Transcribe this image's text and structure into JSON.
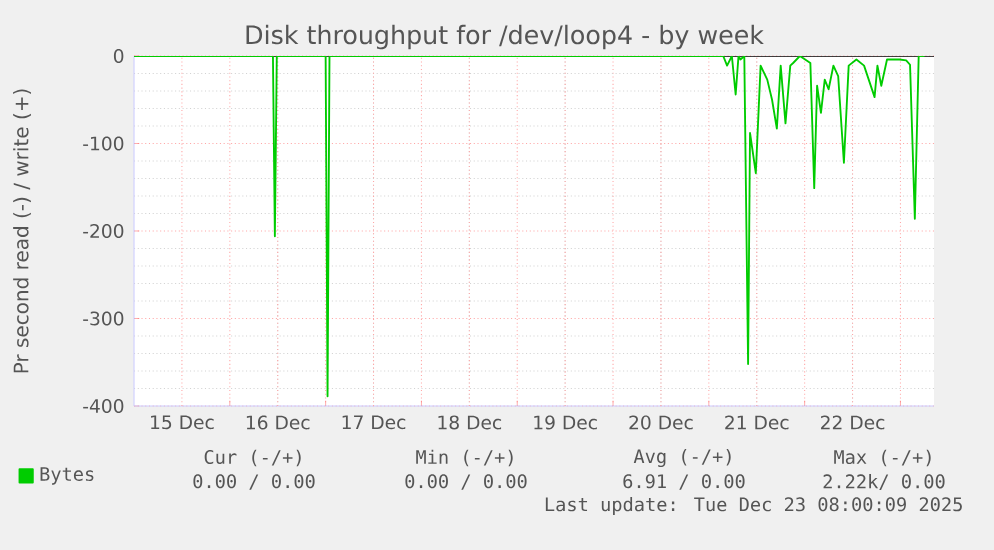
{
  "chart_data": {
    "type": "line",
    "title": "Disk throughput for /dev/loop4 - by week",
    "ylabel": "Pr second read (-) / write (+)",
    "xlim": [
      "2025-12-15T00:00",
      "2025-12-23T08:24"
    ],
    "xticks": [
      {
        "value": "2025-12-15T12:00",
        "label": "15 Dec"
      },
      {
        "value": "2025-12-16T00:00",
        "label": null
      },
      {
        "value": "2025-12-16T12:00",
        "label": "16 Dec"
      },
      {
        "value": "2025-12-17T00:00",
        "label": null
      },
      {
        "value": "2025-12-17T12:00",
        "label": "17 Dec"
      },
      {
        "value": "2025-12-18T00:00",
        "label": null
      },
      {
        "value": "2025-12-18T12:00",
        "label": "18 Dec"
      },
      {
        "value": "2025-12-19T00:00",
        "label": null
      },
      {
        "value": "2025-12-19T12:00",
        "label": "19 Dec"
      },
      {
        "value": "2025-12-20T00:00",
        "label": null
      },
      {
        "value": "2025-12-20T12:00",
        "label": "20 Dec"
      },
      {
        "value": "2025-12-21T00:00",
        "label": null
      },
      {
        "value": "2025-12-21T12:00",
        "label": "21 Dec"
      },
      {
        "value": "2025-12-22T00:00",
        "label": null
      },
      {
        "value": "2025-12-22T12:00",
        "label": "22 Dec"
      },
      {
        "value": "2025-12-23T00:00",
        "label": null
      }
    ],
    "ylim": [
      -400,
      0
    ],
    "yticks": [
      -400,
      -300,
      -200,
      -100,
      0
    ],
    "grid": true,
    "legend": "bottom left",
    "series": [
      {
        "name": "Bytes",
        "color": "#00cc00",
        "x": [
          "2025-12-15T00:00",
          "2025-12-16T10:48",
          "2025-12-16T11:17",
          "2025-12-16T11:46",
          "2025-12-17T00:00",
          "2025-12-17T00:29",
          "2025-12-17T00:58",
          "2025-12-21T03:36",
          "2025-12-21T04:34",
          "2025-12-21T05:46",
          "2025-12-21T06:43",
          "2025-12-21T07:26",
          "2025-12-21T07:55",
          "2025-12-21T08:53",
          "2025-12-21T09:50",
          "2025-12-21T10:19",
          "2025-12-21T11:46",
          "2025-12-21T12:58",
          "2025-12-21T14:38",
          "2025-12-21T15:50",
          "2025-12-21T17:02",
          "2025-12-21T18:00",
          "2025-12-21T19:12",
          "2025-12-21T20:24",
          "2025-12-21T21:07",
          "2025-12-21T22:48",
          "2025-12-22T01:26",
          "2025-12-22T02:24",
          "2025-12-22T03:07",
          "2025-12-22T04:05",
          "2025-12-22T05:02",
          "2025-12-22T06:00",
          "2025-12-22T07:12",
          "2025-12-22T08:24",
          "2025-12-22T09:50",
          "2025-12-22T11:02",
          "2025-12-22T12:58",
          "2025-12-22T14:53",
          "2025-12-22T17:31",
          "2025-12-22T18:14",
          "2025-12-22T19:12",
          "2025-12-22T20:38",
          "2025-12-22T23:46",
          "2025-12-23T01:26",
          "2025-12-23T02:24",
          "2025-12-23T03:36",
          "2025-12-23T04:34",
          "2025-12-23T06:00"
        ],
        "values": [
          0,
          0,
          -206,
          0,
          0,
          -389,
          0,
          0,
          -11,
          0,
          -44,
          0,
          -4,
          0,
          -352,
          -88,
          -134,
          -11,
          -27,
          -50,
          -83,
          -11,
          -77,
          -11,
          -8,
          0,
          -8,
          -151,
          -34,
          -65,
          -27,
          -38,
          -11,
          -23,
          -122,
          -11,
          -4,
          -11,
          -47,
          -11,
          -34,
          -4,
          -4,
          -5,
          -10,
          -186,
          0,
          0
        ]
      }
    ],
    "annotations": [
      "Cur (-/+)",
      "Min (-/+)",
      "Avg (-/+)",
      "Max (-/+)",
      "0.00 /  0.00",
      "0.00 /  0.00",
      "6.91 /  0.00",
      "2.22k/  0.00",
      "Last update: Tue Dec 23 08:00:09 2025"
    ]
  }
}
